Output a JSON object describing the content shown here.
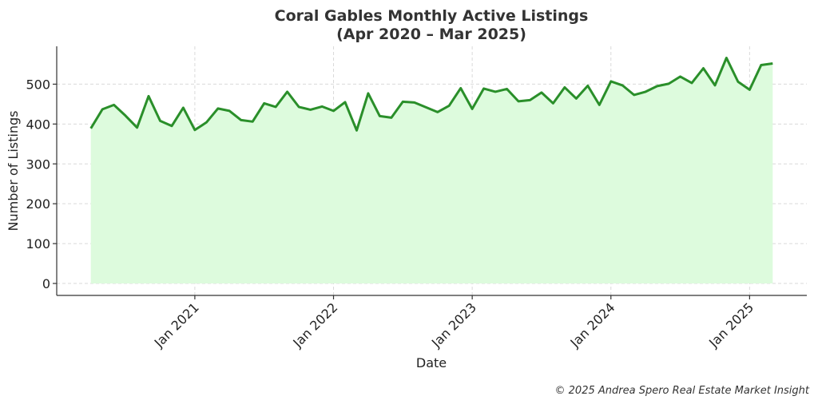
{
  "chart_data": {
    "type": "area",
    "title": "Coral Gables Monthly Active Listings",
    "subtitle": "(Apr 2020 – Mar 2025)",
    "xlabel": "Date",
    "ylabel": "Number of Listings",
    "x_start": "2020-04",
    "x_end": "2025-03",
    "ylim": [
      -30,
      595
    ],
    "yticks": [
      0,
      100,
      200,
      300,
      400,
      500
    ],
    "xticks": [
      {
        "label": "Jan 2021",
        "date": "2021-01"
      },
      {
        "label": "Jan 2022",
        "date": "2022-01"
      },
      {
        "label": "Jan 2023",
        "date": "2023-01"
      },
      {
        "label": "Jan 2024",
        "date": "2024-01"
      },
      {
        "label": "Jan 2025",
        "date": "2025-01"
      }
    ],
    "grid": true,
    "x": [
      "2020-04",
      "2020-05",
      "2020-06",
      "2020-07",
      "2020-08",
      "2020-09",
      "2020-10",
      "2020-11",
      "2020-12",
      "2021-01",
      "2021-02",
      "2021-03",
      "2021-04",
      "2021-05",
      "2021-06",
      "2021-07",
      "2021-08",
      "2021-09",
      "2021-10",
      "2021-11",
      "2021-12",
      "2022-01",
      "2022-02",
      "2022-03",
      "2022-04",
      "2022-05",
      "2022-06",
      "2022-07",
      "2022-08",
      "2022-09",
      "2022-10",
      "2022-11",
      "2022-12",
      "2023-01",
      "2023-02",
      "2023-03",
      "2023-04",
      "2023-05",
      "2023-06",
      "2023-07",
      "2023-08",
      "2023-09",
      "2023-10",
      "2023-11",
      "2023-12",
      "2024-01",
      "2024-02",
      "2024-03",
      "2024-04",
      "2024-05",
      "2024-06",
      "2024-07",
      "2024-08",
      "2024-09",
      "2024-10",
      "2024-11",
      "2024-12",
      "2025-01",
      "2025-02",
      "2025-03"
    ],
    "series": [
      {
        "values": [
          389,
          437,
          448,
          421,
          391,
          470,
          408,
          395,
          441,
          385,
          404,
          439,
          433,
          410,
          406,
          452,
          443,
          481,
          443,
          436,
          444,
          433,
          455,
          384,
          477,
          420,
          416,
          456,
          454,
          442,
          430,
          446,
          490,
          438,
          489,
          481,
          488,
          457,
          460,
          479,
          452,
          492,
          464,
          496,
          448,
          507,
          497,
          473,
          481,
          495,
          501,
          519,
          503,
          540,
          497,
          566,
          506,
          486,
          548,
          552
        ],
        "line_color": "#2a8f2a",
        "fill_color": "#ddfbdd"
      }
    ]
  },
  "footer": {
    "credit": "© 2025 Andrea Spero Real Estate Market Insight"
  }
}
